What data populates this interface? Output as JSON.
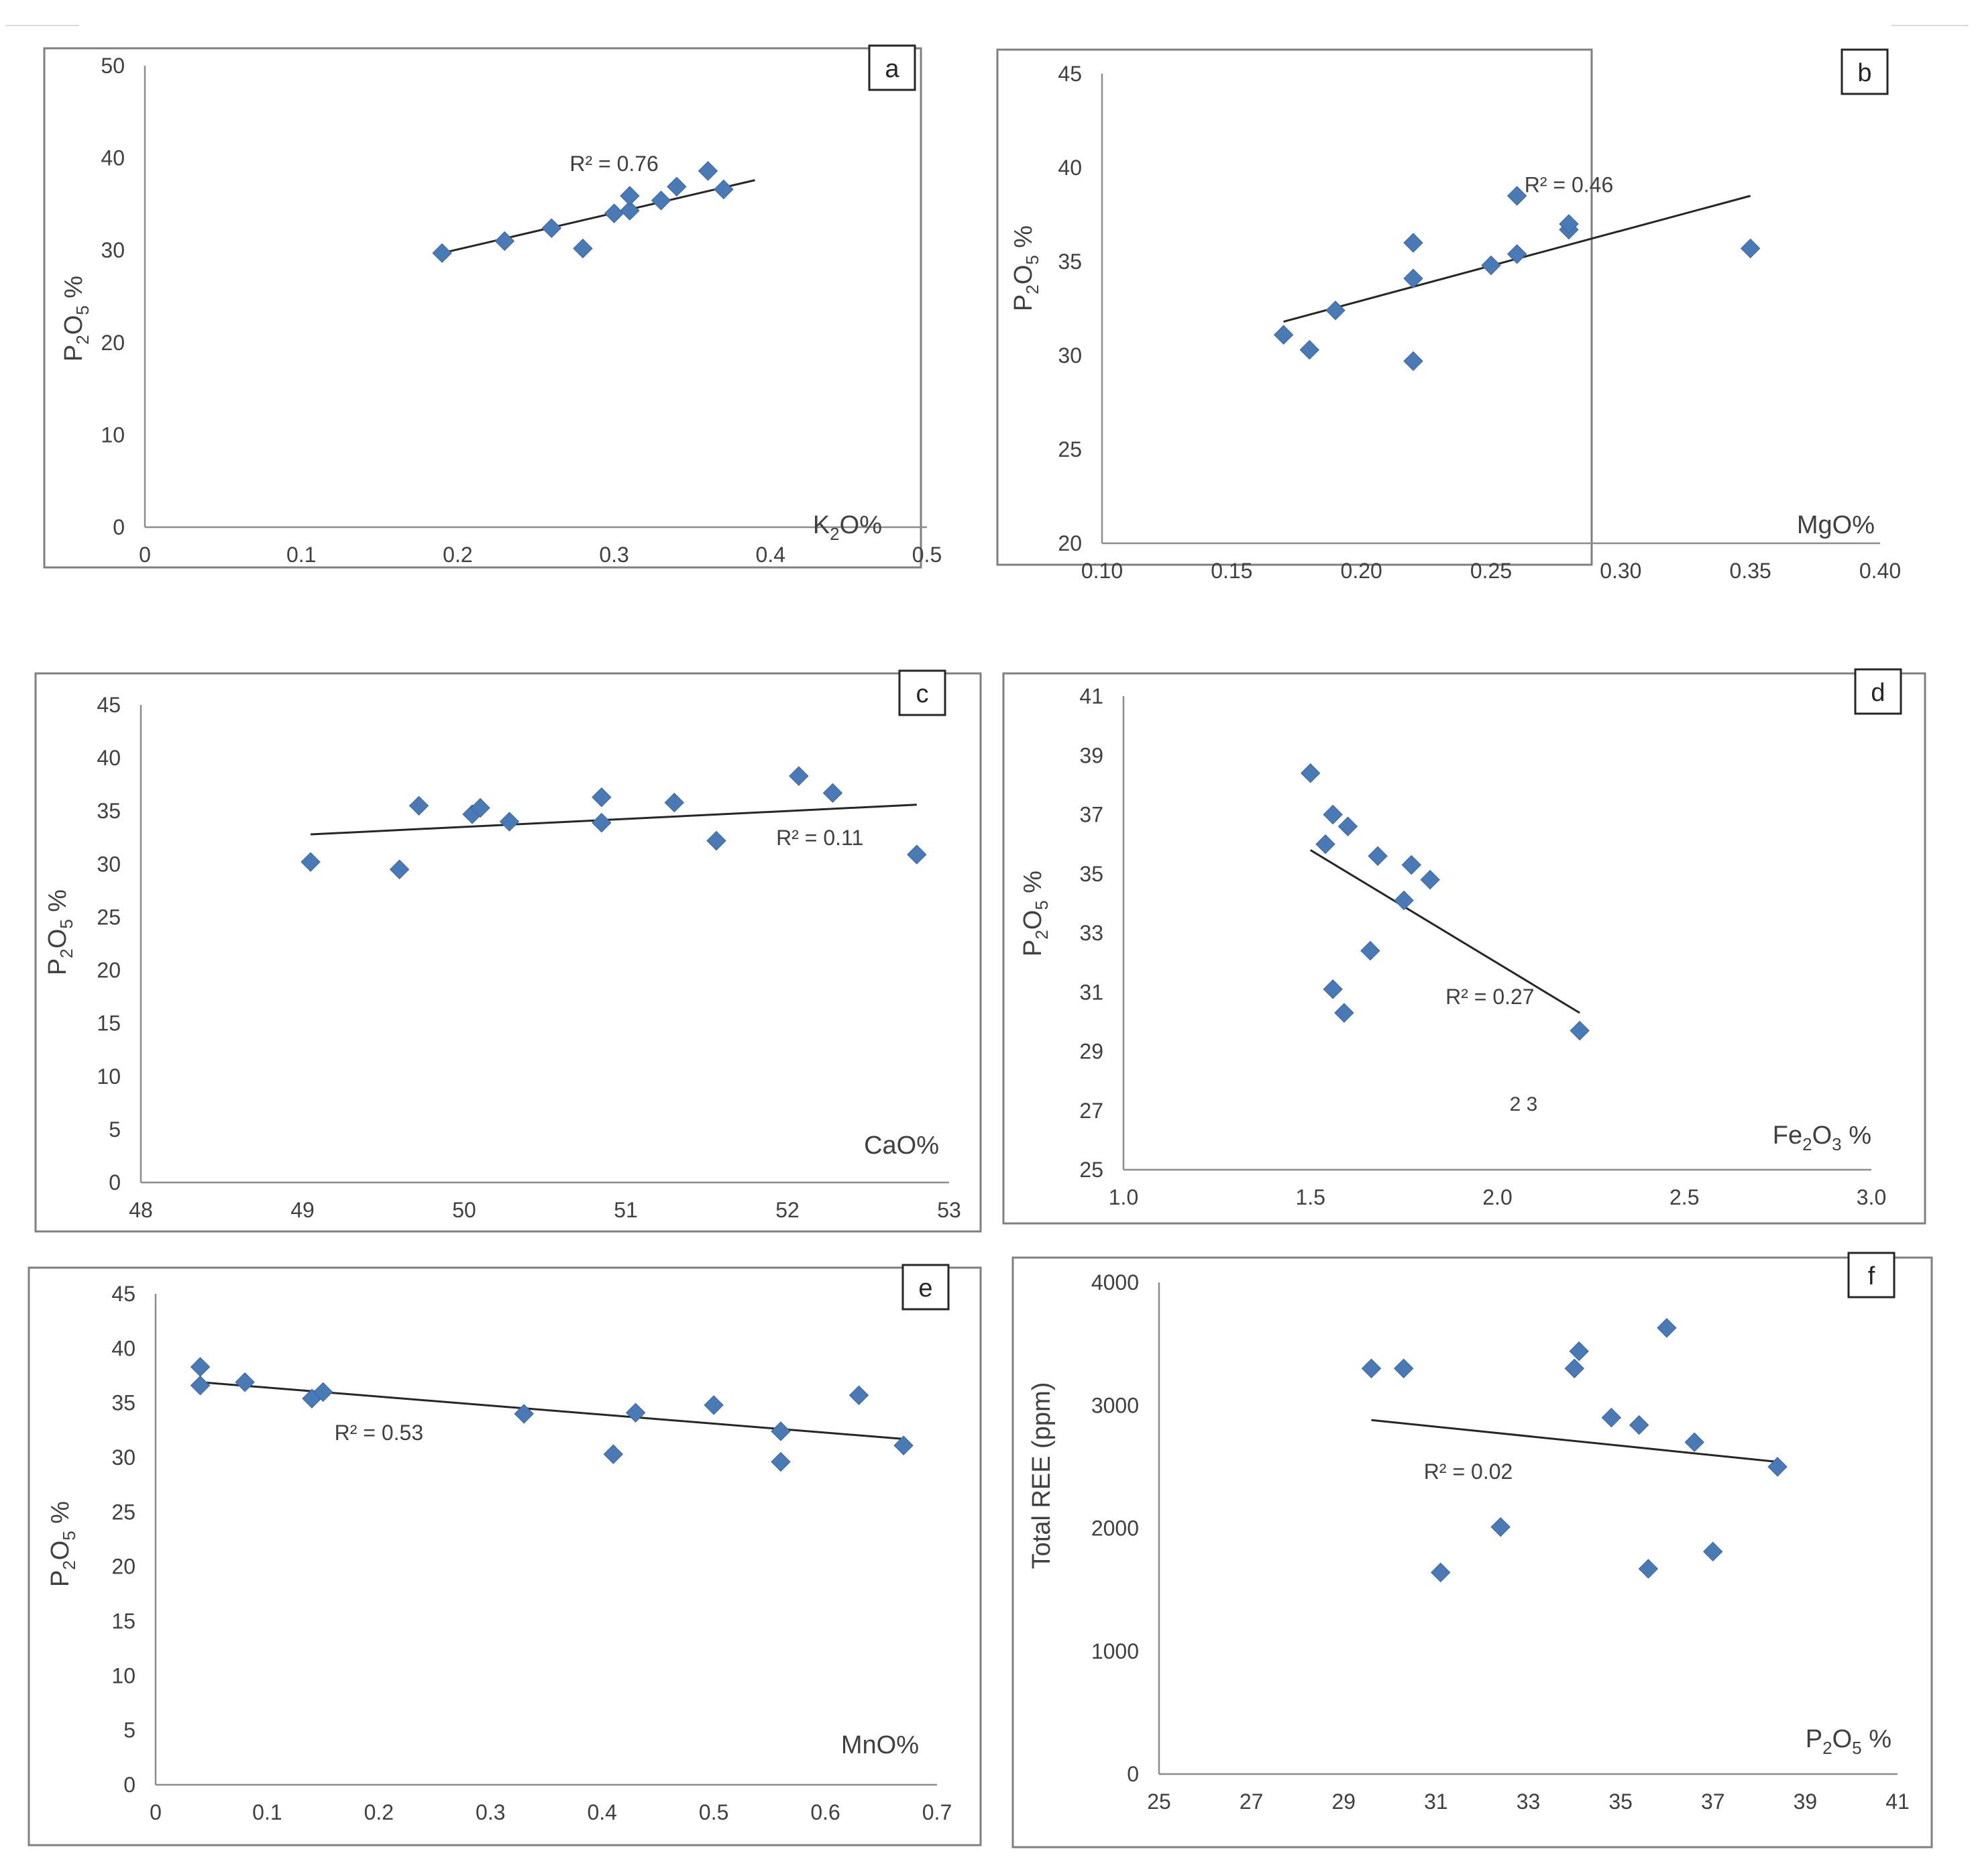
{
  "chart_data": [
    {
      "type": "scatter",
      "panel_label": "a",
      "xlabel": "K2O%",
      "xlabel_parts": [
        "K",
        "2",
        "O%"
      ],
      "ylabel": "P2O5 %",
      "ylabel_parts": [
        "P",
        "2",
        "O",
        "5",
        " %"
      ],
      "xlim": [
        0,
        0.5
      ],
      "ylim": [
        0,
        50
      ],
      "x_ticks": [
        0,
        0.1,
        0.2,
        0.3,
        0.4,
        0.5
      ],
      "x_tick_labels": [
        "0",
        "0.1",
        "0.2",
        "0.3",
        "0.4",
        "0.5"
      ],
      "y_ticks": [
        0,
        10,
        20,
        30,
        40,
        50
      ],
      "y_tick_labels": [
        "0",
        "10",
        "20",
        "30",
        "40",
        "50"
      ],
      "grid": false,
      "points": [
        {
          "x": 0.19,
          "y": 29.7
        },
        {
          "x": 0.23,
          "y": 31.0
        },
        {
          "x": 0.26,
          "y": 32.4
        },
        {
          "x": 0.28,
          "y": 30.2
        },
        {
          "x": 0.3,
          "y": 34.0
        },
        {
          "x": 0.31,
          "y": 34.3
        },
        {
          "x": 0.31,
          "y": 35.9
        },
        {
          "x": 0.33,
          "y": 35.4
        },
        {
          "x": 0.34,
          "y": 36.9
        },
        {
          "x": 0.36,
          "y": 38.6
        },
        {
          "x": 0.37,
          "y": 36.6
        }
      ],
      "trendline": [
        {
          "x": 0.19,
          "y": 29.7
        },
        {
          "x": 0.39,
          "y": 37.6
        }
      ],
      "r_squared_label": "R² = 0.76",
      "r_squared_at": {
        "x": 0.3,
        "y": 38.6
      }
    },
    {
      "type": "scatter",
      "panel_label": "b",
      "xlabel": "MgO%",
      "xlabel_parts": [
        "MgO%"
      ],
      "ylabel": "P2O5 %",
      "ylabel_parts": [
        "P",
        "2",
        "O",
        "5",
        " %"
      ],
      "xlim": [
        0.1,
        0.4
      ],
      "ylim": [
        20,
        45
      ],
      "x_ticks": [
        0.1,
        0.15,
        0.2,
        0.25,
        0.3,
        0.35,
        0.4
      ],
      "x_tick_labels": [
        "0.10",
        "0.15",
        "0.20",
        "0.25",
        "0.30",
        "0.35",
        "0.40"
      ],
      "y_ticks": [
        20,
        25,
        30,
        35,
        40,
        45
      ],
      "y_tick_labels": [
        "20",
        "25",
        "30",
        "35",
        "40",
        "45"
      ],
      "grid": false,
      "points": [
        {
          "x": 0.17,
          "y": 31.1
        },
        {
          "x": 0.18,
          "y": 30.3
        },
        {
          "x": 0.19,
          "y": 32.4
        },
        {
          "x": 0.22,
          "y": 29.7
        },
        {
          "x": 0.22,
          "y": 34.1
        },
        {
          "x": 0.22,
          "y": 36.0
        },
        {
          "x": 0.25,
          "y": 34.8
        },
        {
          "x": 0.26,
          "y": 35.4
        },
        {
          "x": 0.26,
          "y": 38.5
        },
        {
          "x": 0.28,
          "y": 36.7
        },
        {
          "x": 0.28,
          "y": 37.0
        },
        {
          "x": 0.35,
          "y": 35.7
        }
      ],
      "trendline": [
        {
          "x": 0.17,
          "y": 31.8
        },
        {
          "x": 0.35,
          "y": 38.5
        }
      ],
      "r_squared_label": "R² = 0.46",
      "r_squared_at": {
        "x": 0.28,
        "y": 38.7
      }
    },
    {
      "type": "scatter",
      "panel_label": "c",
      "xlabel": "CaO%",
      "xlabel_parts": [
        "CaO%"
      ],
      "ylabel": "P2O5 %",
      "ylabel_parts": [
        "P",
        "2",
        "O",
        "5",
        " %"
      ],
      "xlim": [
        48,
        53
      ],
      "ylim": [
        0,
        45
      ],
      "x_ticks": [
        48,
        49,
        50,
        51,
        52,
        53
      ],
      "x_tick_labels": [
        "48",
        "49",
        "50",
        "51",
        "52",
        "53"
      ],
      "y_ticks": [
        0,
        5,
        10,
        15,
        20,
        25,
        30,
        35,
        40,
        45
      ],
      "y_tick_labels": [
        "0",
        "5",
        "10",
        "15",
        "20",
        "25",
        "30",
        "35",
        "40",
        "45"
      ],
      "grid": false,
      "points": [
        {
          "x": 49.05,
          "y": 30.2
        },
        {
          "x": 49.6,
          "y": 29.5
        },
        {
          "x": 49.72,
          "y": 35.5
        },
        {
          "x": 50.05,
          "y": 34.7
        },
        {
          "x": 50.1,
          "y": 35.3
        },
        {
          "x": 50.28,
          "y": 34.0
        },
        {
          "x": 50.85,
          "y": 33.9
        },
        {
          "x": 50.85,
          "y": 36.3
        },
        {
          "x": 51.3,
          "y": 35.8
        },
        {
          "x": 51.56,
          "y": 32.2
        },
        {
          "x": 52.07,
          "y": 38.3
        },
        {
          "x": 52.28,
          "y": 36.7
        },
        {
          "x": 52.8,
          "y": 30.9
        }
      ],
      "trendline": [
        {
          "x": 49.05,
          "y": 32.8
        },
        {
          "x": 52.8,
          "y": 35.6
        }
      ],
      "r_squared_label": "R² = 0.11",
      "r_squared_at": {
        "x": 52.2,
        "y": 31.8
      }
    },
    {
      "type": "scatter",
      "panel_label": "d",
      "xlabel": "Fe2O3 %",
      "xlabel_parts": [
        "Fe",
        "2",
        "O",
        "3",
        " %"
      ],
      "ylabel": "P2O5 %",
      "ylabel_parts": [
        "P",
        "2",
        "O",
        "5",
        " %"
      ],
      "xlim": [
        1.0,
        3.0
      ],
      "ylim": [
        25,
        41
      ],
      "x_ticks": [
        1.0,
        1.5,
        2.0,
        2.5,
        3.0
      ],
      "x_tick_labels": [
        "1.0",
        "1.5",
        "2.0",
        "2.5",
        "3.0"
      ],
      "y_ticks": [
        25,
        27,
        29,
        31,
        33,
        35,
        37,
        39,
        41
      ],
      "y_tick_labels": [
        "25",
        "27",
        "29",
        "31",
        "33",
        "35",
        "37",
        "39",
        "41"
      ],
      "grid": false,
      "points": [
        {
          "x": 1.5,
          "y": 38.4
        },
        {
          "x": 1.54,
          "y": 36.0
        },
        {
          "x": 1.56,
          "y": 37.0
        },
        {
          "x": 1.56,
          "y": 31.1
        },
        {
          "x": 1.59,
          "y": 30.3
        },
        {
          "x": 1.6,
          "y": 36.6
        },
        {
          "x": 1.66,
          "y": 32.4
        },
        {
          "x": 1.68,
          "y": 35.6
        },
        {
          "x": 1.75,
          "y": 34.1
        },
        {
          "x": 1.77,
          "y": 35.3
        },
        {
          "x": 1.82,
          "y": 34.8
        },
        {
          "x": 2.22,
          "y": 29.7
        }
      ],
      "trendline": [
        {
          "x": 1.5,
          "y": 35.8
        },
        {
          "x": 2.22,
          "y": 30.3
        }
      ],
      "r_squared_label": "R² = 0.27",
      "r_squared_at": {
        "x": 1.98,
        "y": 30.6
      },
      "stray_text": "2 3",
      "stray_text_at": {
        "x": 2.07,
        "y": 27.0
      }
    },
    {
      "type": "scatter",
      "panel_label": "e",
      "xlabel": "MnO%",
      "xlabel_parts": [
        "MnO%"
      ],
      "ylabel": "P2O5 %",
      "ylabel_parts": [
        "P",
        "2",
        "O",
        "5",
        " %"
      ],
      "xlim": [
        0,
        0.7
      ],
      "ylim": [
        0,
        45
      ],
      "x_ticks": [
        0,
        0.1,
        0.2,
        0.3,
        0.4,
        0.5,
        0.6,
        0.7
      ],
      "x_tick_labels": [
        "0",
        "0.1",
        "0.2",
        "0.3",
        "0.4",
        "0.5",
        "0.6",
        "0.7"
      ],
      "y_ticks": [
        0,
        5,
        10,
        15,
        20,
        25,
        30,
        35,
        40,
        45
      ],
      "y_tick_labels": [
        "0",
        "5",
        "10",
        "15",
        "20",
        "25",
        "30",
        "35",
        "40",
        "45"
      ],
      "grid": false,
      "points": [
        {
          "x": 0.04,
          "y": 38.3
        },
        {
          "x": 0.04,
          "y": 36.6
        },
        {
          "x": 0.08,
          "y": 36.9
        },
        {
          "x": 0.14,
          "y": 35.4
        },
        {
          "x": 0.15,
          "y": 36.0
        },
        {
          "x": 0.33,
          "y": 34.0
        },
        {
          "x": 0.41,
          "y": 30.3
        },
        {
          "x": 0.43,
          "y": 34.1
        },
        {
          "x": 0.5,
          "y": 34.8
        },
        {
          "x": 0.56,
          "y": 32.4
        },
        {
          "x": 0.56,
          "y": 29.6
        },
        {
          "x": 0.63,
          "y": 35.7
        },
        {
          "x": 0.67,
          "y": 31.1
        }
      ],
      "trendline": [
        {
          "x": 0.04,
          "y": 36.9
        },
        {
          "x": 0.67,
          "y": 31.7
        }
      ],
      "r_squared_label": "R² = 0.53",
      "r_squared_at": {
        "x": 0.2,
        "y": 31.6
      }
    },
    {
      "type": "scatter",
      "panel_label": "f",
      "xlabel": "P2O5 %",
      "xlabel_parts": [
        "P",
        "2",
        "O",
        "5",
        " %"
      ],
      "ylabel": "Total REE (ppm)",
      "ylabel_parts": [
        "Total REE (ppm)"
      ],
      "xlim": [
        25,
        41
      ],
      "ylim": [
        0,
        4000
      ],
      "x_ticks": [
        25,
        27,
        29,
        31,
        33,
        35,
        37,
        39,
        41
      ],
      "x_tick_labels": [
        "25",
        "27",
        "29",
        "31",
        "33",
        "35",
        "37",
        "39",
        "41"
      ],
      "y_ticks": [
        0,
        1000,
        2000,
        3000,
        4000
      ],
      "y_tick_labels": [
        "0",
        "1000",
        "2000",
        "3000",
        "4000"
      ],
      "grid": false,
      "points": [
        {
          "x": 29.6,
          "y": 3300
        },
        {
          "x": 30.3,
          "y": 3300
        },
        {
          "x": 31.1,
          "y": 1640
        },
        {
          "x": 32.4,
          "y": 2010
        },
        {
          "x": 34.0,
          "y": 3300
        },
        {
          "x": 34.1,
          "y": 3440
        },
        {
          "x": 34.8,
          "y": 2900
        },
        {
          "x": 35.4,
          "y": 2840
        },
        {
          "x": 35.6,
          "y": 1670
        },
        {
          "x": 36.0,
          "y": 3630
        },
        {
          "x": 36.6,
          "y": 2700
        },
        {
          "x": 37.0,
          "y": 1810
        },
        {
          "x": 38.4,
          "y": 2500
        }
      ],
      "trendline": [
        {
          "x": 29.6,
          "y": 2880
        },
        {
          "x": 38.4,
          "y": 2540
        }
      ],
      "r_squared_label": "R² = 0.02",
      "r_squared_at": {
        "x": 31.7,
        "y": 2400
      }
    }
  ],
  "colors": {
    "marker": "#4a7ab5",
    "trendline": "#262626",
    "text": "#404040",
    "axis": "#8c8c8c",
    "panel_border": "#7f7f7f"
  }
}
